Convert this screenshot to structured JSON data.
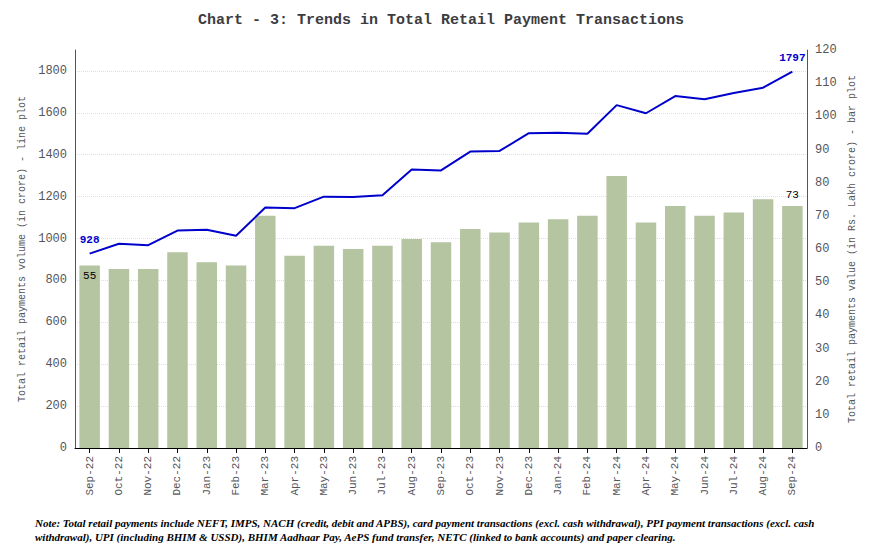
{
  "chart_data": {
    "type": "bar",
    "title": "Chart - 3: Trends in Total Retail Payment Transactions",
    "categories": [
      "Sep-22",
      "Oct-22",
      "Nov-22",
      "Dec-22",
      "Jan-23",
      "Feb-23",
      "Mar-23",
      "Apr-23",
      "May-23",
      "Jun-23",
      "Jul-23",
      "Aug-23",
      "Sep-23",
      "Oct-23",
      "Nov-23",
      "Dec-23",
      "Jan-24",
      "Feb-24",
      "Mar-24",
      "Apr-24",
      "May-24",
      "Jun-24",
      "Jul-24",
      "Aug-24",
      "Sep-24"
    ],
    "series": [
      {
        "type": "bar",
        "axis": "y2",
        "color": "#b5c4a1",
        "values": [
          55,
          54,
          54,
          59,
          56,
          55,
          70,
          58,
          61,
          60,
          61,
          63,
          62,
          66,
          65,
          68,
          69,
          70,
          82,
          68,
          73,
          70,
          71,
          75,
          73
        ]
      },
      {
        "type": "line",
        "axis": "y",
        "color": "#0000cc",
        "values": [
          928,
          975,
          968,
          1038,
          1042,
          1013,
          1148,
          1145,
          1200,
          1198,
          1207,
          1330,
          1325,
          1415,
          1418,
          1503,
          1505,
          1500,
          1637,
          1598,
          1680,
          1665,
          1695,
          1720,
          1797
        ]
      }
    ],
    "ylabel": "Total retail payments volume (in crore) - line plot",
    "y2label": "Total retail payments value (in Rs. Lakh crore) - bar plot",
    "ylim": [
      0,
      1900
    ],
    "yticks": [
      0,
      200,
      400,
      600,
      800,
      1000,
      1200,
      1400,
      1600,
      1800
    ],
    "y2lim": [
      0,
      120
    ],
    "y2ticks": [
      0,
      10,
      20,
      30,
      40,
      50,
      60,
      70,
      80,
      90,
      100,
      110,
      120
    ],
    "grid": true,
    "annotations": [
      {
        "text": "928",
        "x": "Sep-22",
        "y": 928,
        "axis": "y"
      },
      {
        "text": "55",
        "x": "Sep-22",
        "y": 55,
        "axis": "y2"
      },
      {
        "text": "1797",
        "x": "Sep-24",
        "y": 1797,
        "axis": "y"
      },
      {
        "text": "73",
        "x": "Sep-24",
        "y": 73,
        "axis": "y2"
      }
    ],
    "note": "Note: Total retail payments include NEFT, IMPS, NACH (credit, debit and APBS), card payment transactions (excl. cash withdrawal), PPI payment transactions (excl. cash withdrawal), UPI (including BHIM & USSD), BHIM Aadhaar Pay, AePS fund transfer, NETC (linked to bank accounts) and paper clearing."
  }
}
